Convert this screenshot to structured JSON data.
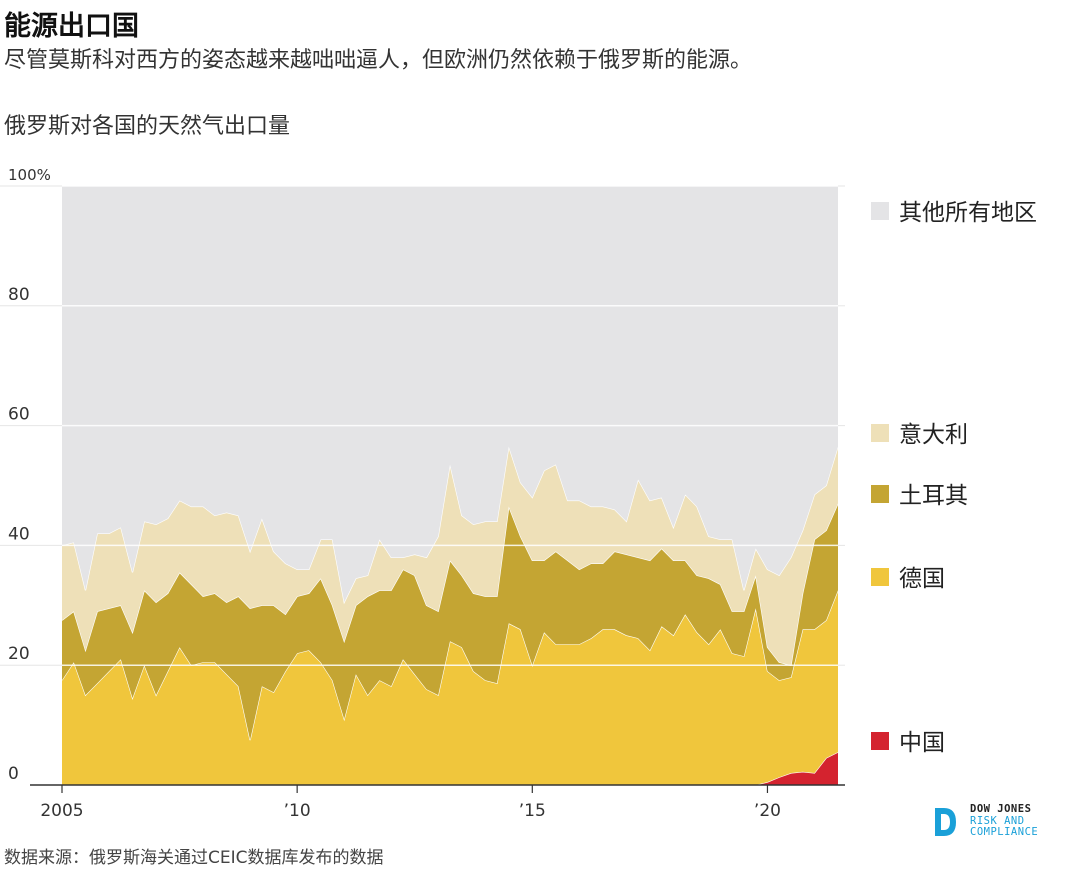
{
  "header": {
    "title": "能源出口国",
    "subtitle": "尽管莫斯科对西方的姿态越来越咄咄逼人，但欧洲仍然依赖于俄罗斯的能源。",
    "chart_title": "俄罗斯对各国的天然气出口量"
  },
  "footer": {
    "source": "数据来源：俄罗斯海关通过CEIC数据库发布的数据",
    "logo_line1": "DOW JONES",
    "logo_line2": "RISK AND",
    "logo_line3": "COMPLIANCE"
  },
  "colors": {
    "china": "#d4232f",
    "germany": "#f0c63c",
    "turkey": "#c4a533",
    "italy": "#eee0b8",
    "others": "#e4e4e6",
    "logo_accent": "#1aa0d8"
  },
  "chart_data": {
    "type": "area",
    "stacked": true,
    "title": "俄罗斯对各国的天然气出口量",
    "xlabel": "",
    "ylabel": "",
    "ylim": [
      0,
      100
    ],
    "xlim": [
      2005.0,
      2021.5
    ],
    "y_ticks": [
      {
        "value": 0,
        "label": "0"
      },
      {
        "value": 20,
        "label": "20"
      },
      {
        "value": 40,
        "label": "40"
      },
      {
        "value": 60,
        "label": "60"
      },
      {
        "value": 80,
        "label": "80"
      },
      {
        "value": 100,
        "label": "100%"
      }
    ],
    "x_ticks": [
      {
        "value": 2005,
        "label": "2005"
      },
      {
        "value": 2010,
        "label": "’10"
      },
      {
        "value": 2015,
        "label": "’15"
      },
      {
        "value": 2020,
        "label": "’20"
      }
    ],
    "grid": true,
    "legend_position": "right",
    "x": [
      2005.0,
      2005.25,
      2005.5,
      2005.75,
      2006.0,
      2006.25,
      2006.5,
      2006.75,
      2007.0,
      2007.25,
      2007.5,
      2007.75,
      2008.0,
      2008.25,
      2008.5,
      2008.75,
      2009.0,
      2009.25,
      2009.5,
      2009.75,
      2010.0,
      2010.25,
      2010.5,
      2010.75,
      2011.0,
      2011.25,
      2011.5,
      2011.75,
      2012.0,
      2012.25,
      2012.5,
      2012.75,
      2013.0,
      2013.25,
      2013.5,
      2013.75,
      2014.0,
      2014.25,
      2014.5,
      2014.75,
      2015.0,
      2015.25,
      2015.5,
      2015.75,
      2016.0,
      2016.25,
      2016.5,
      2016.75,
      2017.0,
      2017.25,
      2017.5,
      2017.75,
      2018.0,
      2018.25,
      2018.5,
      2018.75,
      2019.0,
      2019.25,
      2019.5,
      2019.75,
      2020.0,
      2020.25,
      2020.5,
      2020.75,
      2021.0,
      2021.25,
      2021.5
    ],
    "series": [
      {
        "name": "中国",
        "values": [
          0,
          0,
          0,
          0,
          0,
          0,
          0,
          0,
          0,
          0,
          0,
          0,
          0,
          0,
          0,
          0,
          0,
          0,
          0,
          0,
          0,
          0,
          0,
          0,
          0,
          0,
          0,
          0,
          0,
          0,
          0,
          0,
          0,
          0,
          0,
          0,
          0,
          0,
          0,
          0,
          0,
          0,
          0,
          0,
          0,
          0,
          0,
          0,
          0,
          0,
          0,
          0,
          0,
          0,
          0,
          0,
          0,
          0,
          0,
          0,
          0.5,
          1.3,
          2.0,
          2.2,
          2.0,
          4.5,
          5.5
        ]
      },
      {
        "name": "德国",
        "values": [
          17.5,
          20.5,
          15.0,
          17.0,
          19.0,
          21.0,
          14.5,
          20.0,
          15.0,
          19.0,
          23.0,
          20.0,
          20.5,
          20.5,
          18.5,
          16.5,
          7.5,
          16.5,
          15.5,
          19.0,
          22.0,
          22.5,
          20.5,
          17.5,
          11.0,
          18.5,
          15.0,
          17.5,
          16.5,
          21.0,
          18.5,
          16.0,
          15.0,
          24.0,
          23.0,
          19.0,
          17.5,
          17.0,
          27.0,
          26.0,
          20.0,
          25.5,
          23.5,
          23.5,
          23.5,
          24.5,
          26.0,
          26.0,
          25.0,
          24.5,
          22.5,
          26.5,
          25.0,
          28.5,
          25.5,
          23.5,
          26.0,
          22.0,
          21.5,
          29.5,
          18.5,
          16.2,
          16.0,
          23.8,
          24.0,
          23.0,
          27.0
        ]
      },
      {
        "name": "土耳其",
        "values": [
          10.0,
          8.5,
          7.5,
          12.0,
          10.5,
          9.0,
          11.0,
          12.5,
          15.5,
          13.0,
          12.5,
          13.5,
          11.0,
          11.5,
          12.0,
          15.0,
          22.0,
          13.5,
          14.5,
          9.5,
          9.5,
          9.5,
          14.0,
          12.5,
          13.0,
          11.5,
          16.5,
          15.0,
          16.0,
          15.0,
          16.5,
          14.0,
          14.0,
          13.5,
          12.0,
          13.0,
          14.0,
          14.5,
          19.5,
          15.5,
          17.5,
          12.0,
          15.5,
          14.0,
          12.5,
          12.5,
          11.0,
          13.0,
          13.5,
          13.5,
          15.0,
          13.0,
          12.5,
          9.0,
          9.5,
          11.0,
          7.5,
          7.0,
          7.5,
          5.5,
          4.0,
          3.0,
          2.0,
          6.0,
          15.0,
          15.0,
          14.5
        ]
      },
      {
        "name": "意大利",
        "values": [
          12.5,
          11.5,
          10.0,
          13.0,
          12.5,
          13.0,
          10.0,
          11.5,
          13.0,
          12.5,
          12.0,
          13.0,
          15.0,
          13.0,
          15.0,
          13.5,
          9.5,
          14.5,
          9.0,
          8.5,
          4.5,
          4.0,
          6.5,
          11.0,
          6.5,
          4.5,
          3.5,
          8.5,
          5.5,
          2.0,
          3.5,
          8.0,
          12.5,
          16.0,
          10.0,
          11.5,
          12.5,
          12.5,
          10.0,
          9.0,
          10.5,
          15.0,
          14.5,
          10.0,
          11.5,
          9.5,
          9.5,
          7.0,
          5.5,
          13.0,
          10.0,
          8.5,
          5.5,
          11.0,
          11.5,
          7.0,
          7.5,
          12.0,
          3.5,
          4.5,
          13.0,
          14.5,
          18.0,
          10.5,
          7.5,
          7.5,
          9.5
        ]
      },
      {
        "name": "其他所有地区",
        "values": [
          60.0,
          59.5,
          67.5,
          58.0,
          58.0,
          57.0,
          64.5,
          56.0,
          56.5,
          55.5,
          52.5,
          53.5,
          53.5,
          55.0,
          54.5,
          55.0,
          61.0,
          55.5,
          61.0,
          63.0,
          64.0,
          64.0,
          59.0,
          59.0,
          69.5,
          65.5,
          65.0,
          59.0,
          62.0,
          62.0,
          61.5,
          62.0,
          58.5,
          46.5,
          55.0,
          56.5,
          56.0,
          56.0,
          43.5,
          49.5,
          52.0,
          47.5,
          46.5,
          52.5,
          52.5,
          53.5,
          53.5,
          54.0,
          56.0,
          49.0,
          52.5,
          52.0,
          57.0,
          51.5,
          53.5,
          58.5,
          59.0,
          59.0,
          67.5,
          60.5,
          64.0,
          65.0,
          62.0,
          57.5,
          51.5,
          50.0,
          43.5
        ]
      }
    ]
  }
}
